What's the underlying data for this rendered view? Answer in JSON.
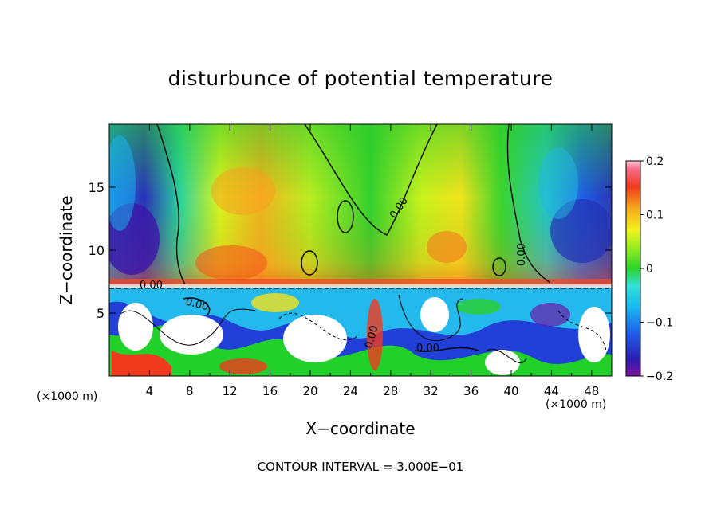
{
  "chart_data": {
    "type": "heatmap",
    "title": "disturbunce of potential temperature",
    "xlabel": "X−coordinate",
    "ylabel": "Z−coordinate",
    "x_unit_label": "(×1000 m)",
    "x_ticks": [
      "4",
      "8",
      "12",
      "16",
      "20",
      "24",
      "28",
      "32",
      "36",
      "40",
      "44",
      "48"
    ],
    "y_ticks": [
      "5",
      "10",
      "15"
    ],
    "xlim": [
      0,
      50
    ],
    "ylim": [
      0,
      20
    ],
    "colorbar": {
      "range": [
        -0.2,
        0.2
      ],
      "tick_labels": [
        "0.2",
        "0.1",
        "0",
        "−0.1",
        "−0.2"
      ],
      "tick_values": [
        0.2,
        0.1,
        0,
        -0.1,
        -0.2
      ]
    },
    "contour_labels": [
      "0.00",
      "0.00",
      "0.00",
      "0.00",
      "0.00",
      "0.00"
    ],
    "annotation": "CONTOUR INTERVAL = 3.000E−01",
    "grid": false
  }
}
